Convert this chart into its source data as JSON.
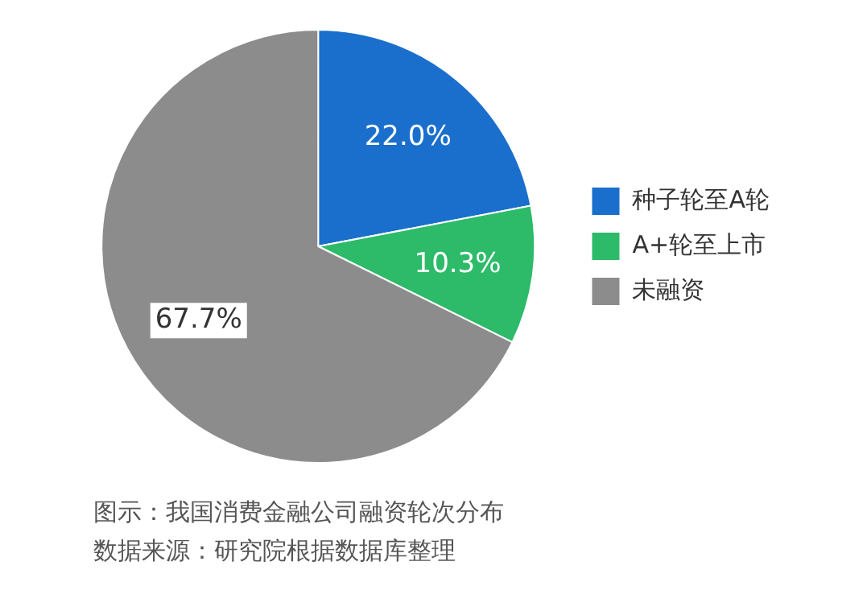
{
  "chart_data": {
    "type": "pie",
    "categories": [
      "种子轮至A轮",
      "A+轮至上市",
      "未融资"
    ],
    "values": [
      22.0,
      10.3,
      67.7
    ],
    "colors": [
      "#1a6fcc",
      "#2dbb6a",
      "#8c8c8c"
    ],
    "value_labels": [
      "22.0%",
      "10.3%",
      "67.7%"
    ],
    "legend": "right",
    "annotations": [
      "图示：我国消费金融公司融资轮次分布",
      "数据来源：研究院根据数据库整理"
    ]
  }
}
